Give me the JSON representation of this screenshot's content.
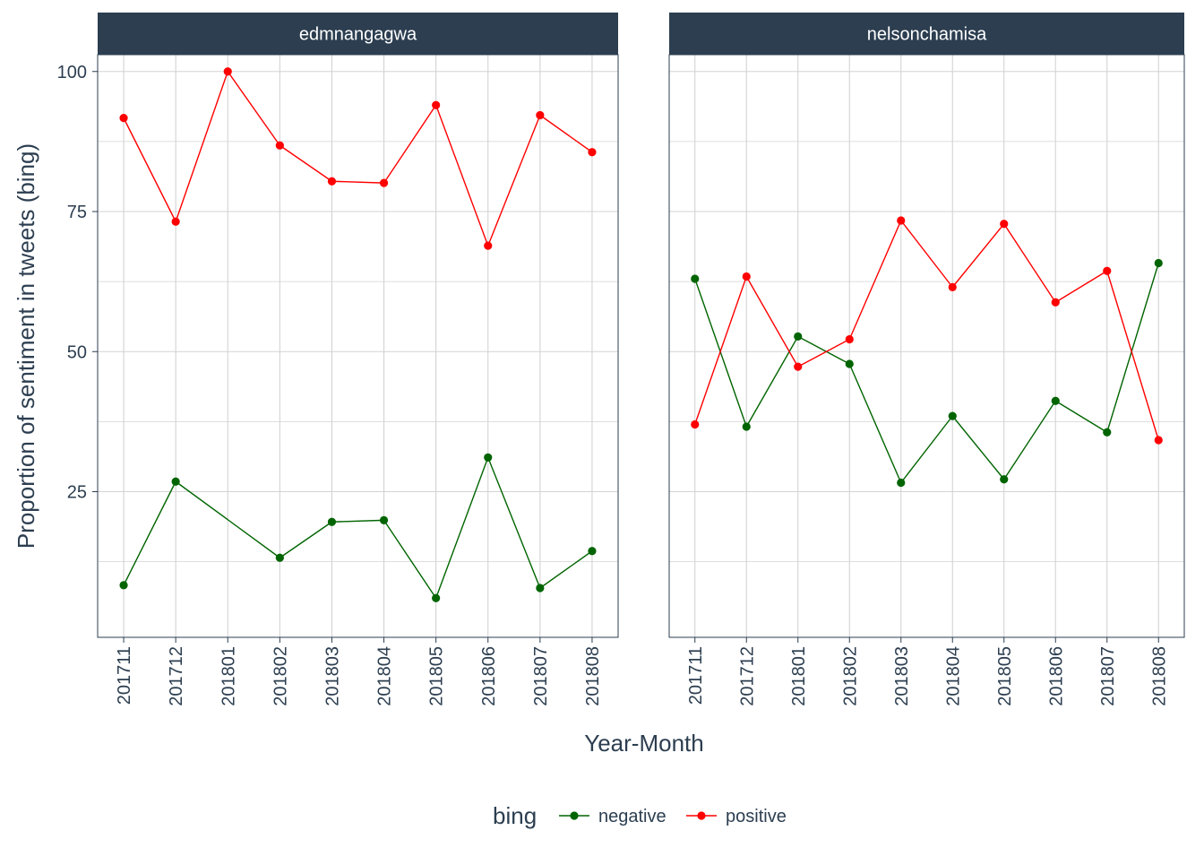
{
  "chart_data": {
    "type": "line",
    "ylabel": "Proportion of sentiment in tweets (bing)",
    "xlabel": "Year-Month",
    "ylim": [
      -1,
      103
    ],
    "y_ticks": [
      25,
      50,
      75,
      100
    ],
    "grid": true,
    "legend": {
      "title": "bing",
      "position": "bottom",
      "entries": [
        "negative",
        "positive"
      ]
    },
    "colors": {
      "negative": "#006400",
      "positive": "#ff0000",
      "strip": "#2c3e50",
      "text": "#2c3e50",
      "grid": "#d3d3d3"
    },
    "categories": [
      "201711",
      "201712",
      "201801",
      "201802",
      "201803",
      "201804",
      "201805",
      "201806",
      "201807",
      "201808"
    ],
    "panels": [
      {
        "title": "edmnangagwa",
        "series": [
          {
            "name": "negative",
            "x": [
              "201711",
              "201712",
              "201802",
              "201803",
              "201804",
              "201805",
              "201806",
              "201807",
              "201808"
            ],
            "values": [
              8.3,
              26.8,
              13.2,
              19.6,
              19.9,
              6.0,
              31.1,
              7.8,
              14.4
            ]
          },
          {
            "name": "positive",
            "x": [
              "201711",
              "201712",
              "201801",
              "201802",
              "201803",
              "201804",
              "201805",
              "201806",
              "201807",
              "201808"
            ],
            "values": [
              91.7,
              73.2,
              100,
              86.8,
              80.4,
              80.1,
              94.0,
              68.9,
              92.2,
              85.6
            ]
          }
        ]
      },
      {
        "title": "nelsonchamisa",
        "series": [
          {
            "name": "negative",
            "x": [
              "201711",
              "201712",
              "201801",
              "201802",
              "201803",
              "201804",
              "201805",
              "201806",
              "201807",
              "201808"
            ],
            "values": [
              63.0,
              36.6,
              52.7,
              47.8,
              26.6,
              38.5,
              27.2,
              41.2,
              35.6,
              65.8
            ]
          },
          {
            "name": "positive",
            "x": [
              "201711",
              "201712",
              "201801",
              "201802",
              "201803",
              "201804",
              "201805",
              "201806",
              "201807",
              "201808"
            ],
            "values": [
              37.0,
              63.4,
              47.3,
              52.2,
              73.4,
              61.5,
              72.8,
              58.8,
              64.4,
              34.2
            ]
          }
        ]
      }
    ]
  }
}
